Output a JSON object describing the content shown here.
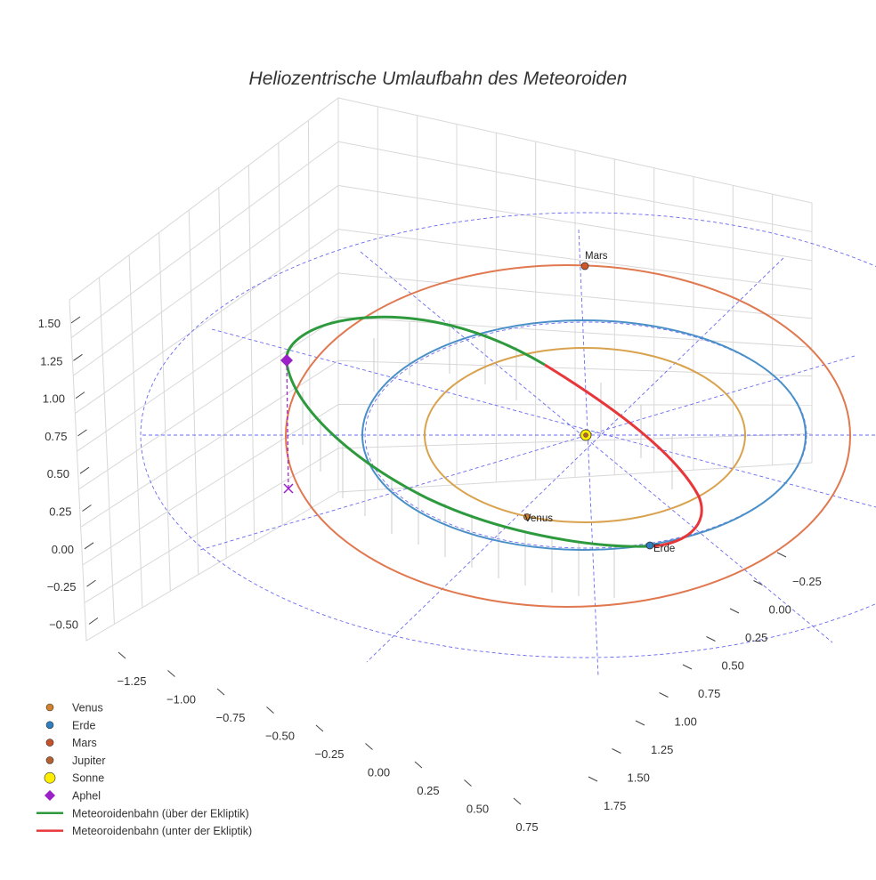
{
  "chart_data": {
    "type": "3d-line",
    "title": "Heliozentrische Umlaufbahn des Meteoroiden",
    "axes": {
      "x": {
        "ticks": [
          "−1.25",
          "−1.00",
          "−0.75",
          "−0.50",
          "−0.25",
          "0.00",
          "0.25",
          "0.50",
          "0.75"
        ]
      },
      "y": {
        "ticks": [
          "−0.25",
          "0.00",
          "0.25",
          "0.50",
          "0.75",
          "1.00",
          "1.25",
          "1.50",
          "1.75"
        ]
      },
      "z": {
        "ticks": [
          "1.50",
          "1.25",
          "1.00",
          "0.75",
          "0.50",
          "0.25",
          "0.00",
          "−0.25",
          "−0.50"
        ]
      }
    },
    "orbits": [
      {
        "name": "Venus",
        "color": "#d8a24e"
      },
      {
        "name": "Erde",
        "color": "#4a90c8"
      },
      {
        "name": "Mars",
        "color": "#e07850"
      },
      {
        "name": "Meteoroidenbahn (über der Ekliptik)",
        "color": "#2e9a3e"
      },
      {
        "name": "Meteoroidenbahn (unter der Ekliptik)",
        "color": "#e8373a"
      }
    ],
    "planet_labels": [
      {
        "name": "Mars",
        "color": "#d2582a"
      },
      {
        "name": "Venus",
        "color": "#d2822a"
      },
      {
        "name": "Erde",
        "color": "#2f7fc0"
      }
    ],
    "legend": [
      {
        "label": "Venus",
        "kind": "dot",
        "color": "#d2822a"
      },
      {
        "label": "Erde",
        "kind": "dot",
        "color": "#2f7fc0"
      },
      {
        "label": "Mars",
        "kind": "dot",
        "color": "#c8502a"
      },
      {
        "label": "Jupiter",
        "kind": "dot",
        "color": "#b5602e"
      },
      {
        "label": "Sonne",
        "kind": "sun",
        "color": "#ffee00"
      },
      {
        "label": "Aphel",
        "kind": "diamond",
        "color": "#9b20c8"
      },
      {
        "label": "Meteoroidenbahn (über der Ekliptik)",
        "kind": "line",
        "color": "#2e9a3e"
      },
      {
        "label": "Meteoroidenbahn (unter der Ekliptik)",
        "kind": "line",
        "color": "#e8373a"
      }
    ]
  }
}
